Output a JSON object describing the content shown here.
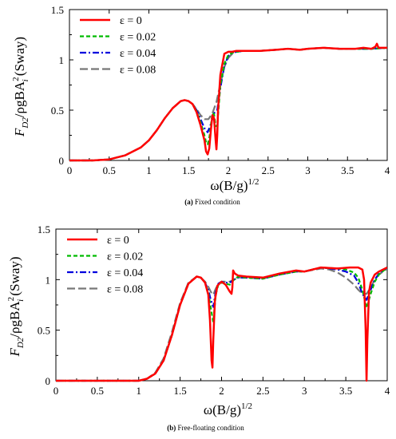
{
  "chart_data": [
    {
      "type": "line",
      "caption_tag": "(a)",
      "caption_text": " Fixed condition",
      "xlabel_base": "ω(B/g)",
      "xlabel_exp": "1/2",
      "ylabel": {
        "F": "F",
        "sub": "D2",
        "mid": "/ρgBA",
        "A_sup": "2",
        "A_sub": "i",
        "tail": " (Sway)"
      },
      "xlim": [
        0,
        4
      ],
      "ylim": [
        0,
        1.5
      ],
      "xticks": [
        0,
        0.5,
        1,
        1.5,
        2,
        2.5,
        3,
        3.5,
        4
      ],
      "xtick_labels": [
        "0",
        "0.5",
        "1",
        "1.5",
        "2",
        "2.5",
        "3",
        "3.5",
        "4"
      ],
      "yticks": [
        0,
        0.5,
        1,
        1.5
      ],
      "ytick_labels": [
        "0",
        "0.5",
        "1",
        "1.5"
      ],
      "grid": false,
      "legend_position": "top-left",
      "series": [
        {
          "name": "ε = 0",
          "color": "#ff0000",
          "dash": "none",
          "width": 2.5,
          "x": [
            0,
            0.3,
            0.5,
            0.7,
            0.9,
            1.0,
            1.1,
            1.2,
            1.3,
            1.4,
            1.45,
            1.5,
            1.55,
            1.6,
            1.65,
            1.7,
            1.72,
            1.74,
            1.76,
            1.78,
            1.8,
            1.82,
            1.84,
            1.85,
            1.86,
            1.87,
            1.9,
            1.95,
            2.0,
            2.05,
            2.1,
            2.2,
            2.4,
            2.6,
            2.75,
            2.9,
            3.0,
            3.2,
            3.4,
            3.6,
            3.7,
            3.8,
            3.85,
            3.87,
            3.89,
            3.9,
            3.95,
            4.0
          ],
          "y": [
            0,
            0,
            0.01,
            0.05,
            0.13,
            0.2,
            0.3,
            0.42,
            0.52,
            0.59,
            0.6,
            0.59,
            0.56,
            0.48,
            0.35,
            0.2,
            0.09,
            0.06,
            0.12,
            0.3,
            0.45,
            0.42,
            0.2,
            0.11,
            0.25,
            0.5,
            0.85,
            1.06,
            1.08,
            1.08,
            1.09,
            1.09,
            1.09,
            1.1,
            1.11,
            1.1,
            1.11,
            1.12,
            1.11,
            1.11,
            1.12,
            1.11,
            1.13,
            1.16,
            1.12,
            1.12,
            1.12,
            1.12
          ]
        },
        {
          "name": "ε = 0.02",
          "color": "#00bb00",
          "dash": "5,3",
          "width": 2.2,
          "x": [
            0,
            0.3,
            0.5,
            0.7,
            0.9,
            1.0,
            1.1,
            1.2,
            1.3,
            1.4,
            1.45,
            1.5,
            1.55,
            1.6,
            1.65,
            1.7,
            1.72,
            1.74,
            1.76,
            1.78,
            1.8,
            1.82,
            1.84,
            1.86,
            1.88,
            1.9,
            1.95,
            2.0,
            2.05,
            2.1,
            2.2,
            2.4,
            2.6,
            2.75,
            2.9,
            3.0,
            3.2,
            3.4,
            3.6,
            3.8,
            4.0
          ],
          "y": [
            0,
            0,
            0.01,
            0.05,
            0.13,
            0.2,
            0.3,
            0.42,
            0.52,
            0.59,
            0.6,
            0.59,
            0.56,
            0.49,
            0.38,
            0.25,
            0.18,
            0.16,
            0.22,
            0.35,
            0.47,
            0.46,
            0.34,
            0.35,
            0.55,
            0.75,
            0.96,
            1.05,
            1.07,
            1.08,
            1.09,
            1.09,
            1.1,
            1.11,
            1.1,
            1.11,
            1.12,
            1.11,
            1.11,
            1.11,
            1.12
          ]
        },
        {
          "name": "ε = 0.04",
          "color": "#0000dd",
          "dash": "8,3,2,3",
          "width": 2.2,
          "x": [
            0,
            0.3,
            0.5,
            0.7,
            0.9,
            1.0,
            1.1,
            1.2,
            1.3,
            1.4,
            1.45,
            1.5,
            1.55,
            1.6,
            1.65,
            1.7,
            1.74,
            1.78,
            1.82,
            1.86,
            1.9,
            1.95,
            2.0,
            2.05,
            2.1,
            2.2,
            2.4,
            2.6,
            2.75,
            2.9,
            3.0,
            3.2,
            3.4,
            3.6,
            3.8,
            4.0
          ],
          "y": [
            0,
            0,
            0.01,
            0.05,
            0.13,
            0.2,
            0.3,
            0.42,
            0.52,
            0.59,
            0.6,
            0.59,
            0.56,
            0.5,
            0.41,
            0.32,
            0.28,
            0.36,
            0.47,
            0.5,
            0.72,
            0.94,
            1.04,
            1.07,
            1.08,
            1.09,
            1.09,
            1.1,
            1.11,
            1.1,
            1.11,
            1.12,
            1.11,
            1.11,
            1.11,
            1.12
          ]
        },
        {
          "name": "ε = 0.08",
          "color": "#777777",
          "dash": "10,4",
          "width": 2.2,
          "x": [
            0,
            0.3,
            0.5,
            0.7,
            0.9,
            1.0,
            1.1,
            1.2,
            1.3,
            1.4,
            1.45,
            1.5,
            1.55,
            1.6,
            1.65,
            1.7,
            1.75,
            1.8,
            1.85,
            1.9,
            1.95,
            2.0,
            2.05,
            2.1,
            2.2,
            2.4,
            2.6,
            2.75,
            2.9,
            3.0,
            3.2,
            3.4,
            3.6,
            3.8,
            4.0
          ],
          "y": [
            0,
            0,
            0.01,
            0.05,
            0.13,
            0.2,
            0.3,
            0.42,
            0.52,
            0.59,
            0.6,
            0.59,
            0.56,
            0.51,
            0.45,
            0.41,
            0.41,
            0.47,
            0.58,
            0.76,
            0.93,
            1.02,
            1.06,
            1.08,
            1.09,
            1.09,
            1.1,
            1.11,
            1.1,
            1.11,
            1.12,
            1.11,
            1.11,
            1.11,
            1.12
          ]
        }
      ]
    },
    {
      "type": "line",
      "caption_tag": "(b)",
      "caption_text": " Free-floating condition",
      "xlabel_base": "ω(B/g)",
      "xlabel_exp": "1/2",
      "ylabel": {
        "F": "F",
        "sub": "D2",
        "mid": "/ρgBA",
        "A_sup": "2",
        "A_sub": "i",
        "tail": " (Sway)"
      },
      "xlim": [
        0,
        4
      ],
      "ylim": [
        0,
        1.5
      ],
      "xticks": [
        0,
        0.5,
        1,
        1.5,
        2,
        2.5,
        3,
        3.5,
        4
      ],
      "xtick_labels": [
        "0",
        "0.5",
        "1",
        "1.5",
        "2",
        "2.5",
        "3",
        "3.5",
        "4"
      ],
      "yticks": [
        0,
        0.5,
        1,
        1.5
      ],
      "ytick_labels": [
        "0",
        "0.5",
        "1",
        "1.5"
      ],
      "grid": false,
      "legend_position": "top-left",
      "series": [
        {
          "name": "ε = 0",
          "color": "#ff0000",
          "dash": "none",
          "width": 2.5,
          "x": [
            0,
            0.5,
            1.0,
            1.1,
            1.2,
            1.3,
            1.4,
            1.5,
            1.6,
            1.7,
            1.75,
            1.8,
            1.84,
            1.86,
            1.88,
            1.89,
            1.9,
            1.92,
            1.95,
            2.0,
            2.05,
            2.1,
            2.12,
            2.13,
            2.14,
            2.16,
            2.2,
            2.3,
            2.5,
            2.7,
            2.9,
            3.0,
            3.2,
            3.4,
            3.55,
            3.65,
            3.7,
            3.72,
            3.74,
            3.75,
            3.76,
            3.78,
            3.8,
            3.85,
            3.9,
            4.0
          ],
          "y": [
            0,
            0,
            0,
            0.02,
            0.07,
            0.2,
            0.45,
            0.75,
            0.96,
            1.03,
            1.02,
            0.97,
            0.85,
            0.6,
            0.2,
            0.13,
            0.4,
            0.8,
            0.94,
            0.98,
            0.95,
            0.88,
            0.86,
            0.92,
            1.09,
            1.06,
            1.04,
            1.03,
            1.02,
            1.06,
            1.09,
            1.08,
            1.12,
            1.11,
            1.12,
            1.12,
            1.1,
            1.0,
            0.5,
            0.0,
            0.4,
            0.88,
            0.97,
            1.05,
            1.08,
            1.12
          ]
        },
        {
          "name": "ε = 0.02",
          "color": "#00bb00",
          "dash": "5,3",
          "width": 2.2,
          "x": [
            0,
            0.5,
            1.0,
            1.1,
            1.2,
            1.3,
            1.4,
            1.5,
            1.6,
            1.7,
            1.75,
            1.8,
            1.84,
            1.87,
            1.9,
            1.93,
            1.96,
            2.0,
            2.05,
            2.1,
            2.15,
            2.2,
            2.3,
            2.5,
            2.7,
            2.9,
            3.0,
            3.2,
            3.4,
            3.5,
            3.6,
            3.65,
            3.7,
            3.75,
            3.8,
            3.85,
            3.9,
            4.0
          ],
          "y": [
            0,
            0,
            0,
            0.02,
            0.07,
            0.2,
            0.45,
            0.75,
            0.96,
            1.03,
            1.02,
            0.97,
            0.87,
            0.72,
            0.58,
            0.85,
            0.95,
            0.97,
            0.96,
            0.95,
            1.0,
            1.03,
            1.02,
            1.01,
            1.05,
            1.08,
            1.08,
            1.12,
            1.11,
            1.1,
            1.07,
            1.02,
            0.9,
            0.72,
            0.86,
            0.98,
            1.05,
            1.12
          ]
        },
        {
          "name": "ε = 0.04",
          "color": "#0000dd",
          "dash": "8,3,2,3",
          "width": 2.2,
          "x": [
            0,
            0.5,
            1.0,
            1.1,
            1.2,
            1.3,
            1.4,
            1.5,
            1.6,
            1.7,
            1.75,
            1.8,
            1.84,
            1.87,
            1.9,
            1.93,
            1.96,
            2.0,
            2.05,
            2.1,
            2.15,
            2.2,
            2.3,
            2.5,
            2.7,
            2.9,
            3.0,
            3.2,
            3.4,
            3.5,
            3.6,
            3.65,
            3.7,
            3.75,
            3.8,
            3.85,
            3.9,
            4.0
          ],
          "y": [
            0,
            0,
            0,
            0.02,
            0.07,
            0.2,
            0.45,
            0.75,
            0.96,
            1.03,
            1.02,
            0.97,
            0.9,
            0.8,
            0.73,
            0.88,
            0.96,
            0.98,
            0.97,
            0.97,
            1.0,
            1.02,
            1.02,
            1.01,
            1.05,
            1.08,
            1.08,
            1.12,
            1.1,
            1.08,
            1.04,
            0.97,
            0.86,
            0.8,
            0.9,
            1.0,
            1.06,
            1.12
          ]
        },
        {
          "name": "ε = 0.08",
          "color": "#777777",
          "dash": "10,4",
          "width": 2.2,
          "x": [
            0,
            0.5,
            1.0,
            1.1,
            1.2,
            1.3,
            1.4,
            1.5,
            1.6,
            1.7,
            1.75,
            1.8,
            1.84,
            1.87,
            1.9,
            1.93,
            1.96,
            2.0,
            2.05,
            2.1,
            2.15,
            2.2,
            2.3,
            2.5,
            2.7,
            2.9,
            3.0,
            3.2,
            3.3,
            3.4,
            3.5,
            3.6,
            3.65,
            3.7,
            3.75,
            3.8,
            3.85,
            3.9,
            4.0
          ],
          "y": [
            0,
            0,
            0,
            0.02,
            0.08,
            0.22,
            0.48,
            0.77,
            0.97,
            1.03,
            1.02,
            0.98,
            0.93,
            0.88,
            0.85,
            0.91,
            0.96,
            0.98,
            0.98,
            0.98,
            1.0,
            1.02,
            1.02,
            1.01,
            1.05,
            1.08,
            1.08,
            1.11,
            1.1,
            1.07,
            1.02,
            0.95,
            0.9,
            0.86,
            0.86,
            0.92,
            1.0,
            1.05,
            1.11
          ]
        }
      ]
    }
  ]
}
